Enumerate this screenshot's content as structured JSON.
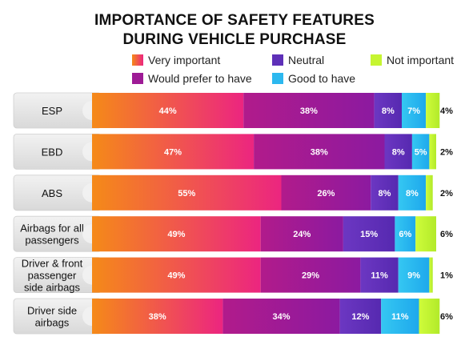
{
  "title_line1": "IMPORTANCE OF SAFETY FEATURES",
  "title_line2": "DURING VEHICLE PURCHASE",
  "colors": {
    "Very important": [
      "#f58a18",
      "#ec2580"
    ],
    "Would prefer to have": [
      "#b11b8b",
      "#8c1aa0"
    ],
    "Neutral": [
      "#6c37c2",
      "#5629b0"
    ],
    "Good to have": [
      "#35c7f2",
      "#1ea8ec"
    ],
    "Not important": [
      "#cffc3a",
      "#b2ea2a"
    ]
  },
  "legend": [
    {
      "label": "Very important",
      "color": "#f06a32"
    },
    {
      "label": "Would prefer to have",
      "color": "#9e1b96"
    },
    {
      "label": "Neutral",
      "color": "#5e30b8"
    },
    {
      "label": "Good to have",
      "color": "#2cb8ef"
    },
    {
      "label": "Not important",
      "color": "#c6f531"
    }
  ],
  "chart_data": {
    "type": "bar",
    "orientation": "horizontal",
    "stacked": true,
    "title": "IMPORTANCE OF SAFETY FEATURES DURING VEHICLE PURCHASE",
    "categories": [
      "ESP",
      "EBD",
      "ABS",
      "Airbags for all passengers",
      "Driver & front passenger side airbags",
      "Driver side airbags"
    ],
    "category_lines": [
      [
        "ESP"
      ],
      [
        "EBD"
      ],
      [
        "ABS"
      ],
      [
        "Airbags for all",
        "passengers"
      ],
      [
        "Driver & front",
        "passenger",
        "side airbags"
      ],
      [
        "Driver side",
        "airbags"
      ]
    ],
    "series": [
      {
        "name": "Very important",
        "values": [
          44,
          47,
          55,
          49,
          49,
          38
        ]
      },
      {
        "name": "Would prefer to have",
        "values": [
          38,
          38,
          26,
          24,
          29,
          34
        ]
      },
      {
        "name": "Neutral",
        "values": [
          8,
          8,
          8,
          15,
          11,
          12
        ]
      },
      {
        "name": "Good to have",
        "values": [
          7,
          5,
          8,
          6,
          9,
          11
        ]
      },
      {
        "name": "Not important",
        "values": [
          4,
          2,
          2,
          6,
          1,
          6
        ]
      }
    ],
    "unit": "%",
    "legend_position": "top"
  }
}
